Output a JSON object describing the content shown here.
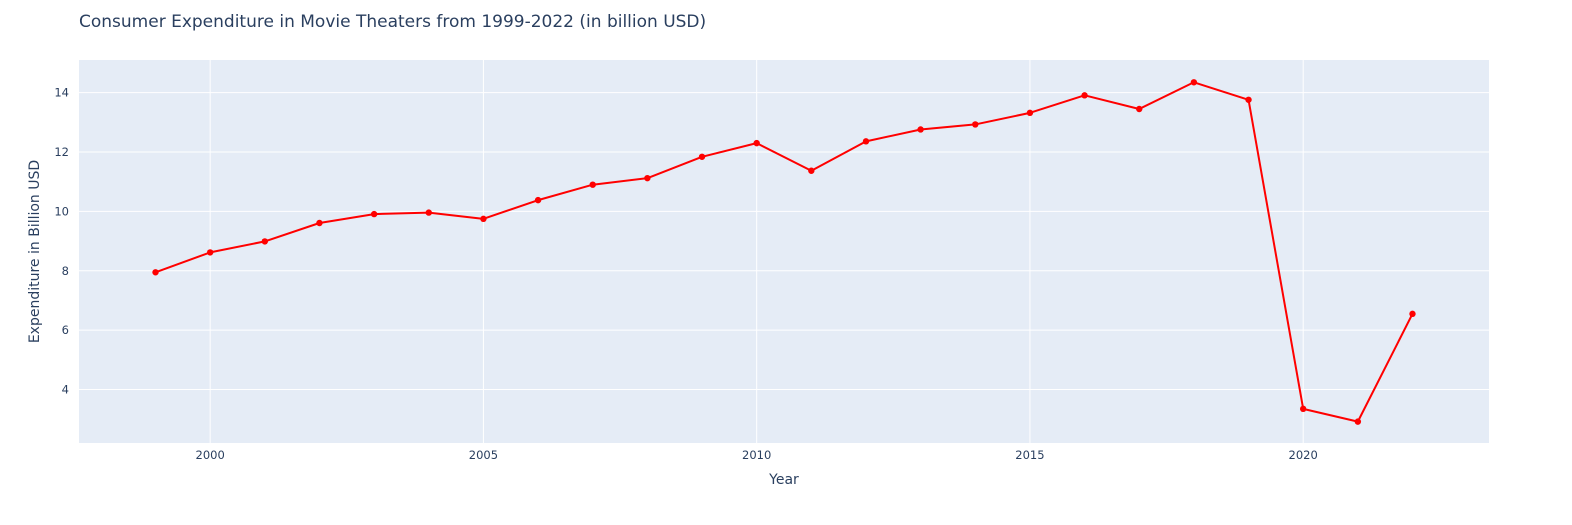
{
  "chart_data": {
    "type": "line",
    "title": "Consumer Expenditure in Movie Theaters from 1999-2022 (in billion USD)",
    "xlabel": "Year",
    "ylabel": "Expenditure in Billion USD",
    "xlim": [
      1997.6,
      2023.4
    ],
    "ylim": [
      2.2,
      15.1
    ],
    "x_ticks": [
      2000,
      2005,
      2010,
      2015,
      2020
    ],
    "y_ticks": [
      4,
      6,
      8,
      10,
      12,
      14
    ],
    "grid": true,
    "legend": "none",
    "colors": {
      "line": "#ff0000",
      "plot_bg": "#e5ecf6",
      "grid": "#ffffff",
      "text": "#2a3f5f"
    },
    "series": [
      {
        "x": [
          1999,
          2000,
          2001,
          2002,
          2003,
          2004,
          2005,
          2006,
          2007,
          2008,
          2009,
          2010,
          2011,
          2012,
          2013,
          2014,
          2015,
          2016,
          2017,
          2018,
          2019,
          2020,
          2021,
          2022
        ],
        "y": [
          7.95,
          8.62,
          8.99,
          9.61,
          9.91,
          9.96,
          9.75,
          10.38,
          10.9,
          11.12,
          11.84,
          12.3,
          11.37,
          12.36,
          12.76,
          12.93,
          13.32,
          13.91,
          13.45,
          14.35,
          13.76,
          3.35,
          2.92,
          6.55
        ]
      }
    ]
  }
}
